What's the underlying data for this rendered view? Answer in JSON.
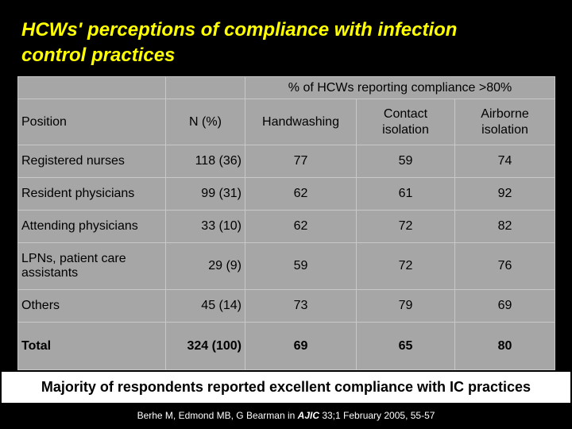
{
  "slide": {
    "title_line1": "HCWs' perceptions of compliance with infection",
    "title_line2": "control practices",
    "banner": "Majority of respondents reported excellent compliance with IC practices",
    "citation_prefix": "Berhe M, Edmond MB, G Bearman in ",
    "citation_journal": "AJIC",
    "citation_suffix": " 33;1 February 2005, 55-57"
  },
  "table": {
    "super_header": "% of HCWs reporting compliance >80%",
    "headers": {
      "position": "Position",
      "n": "N (%)",
      "handwashing": "Handwashing",
      "contact_line1": "Contact",
      "contact_line2": "isolation",
      "airborne_line1": "Airborne",
      "airborne_line2": "isolation"
    },
    "rows": [
      {
        "position": "Registered nurses",
        "n": "118 (36)",
        "handwashing": "77",
        "contact": "59",
        "airborne": "74"
      },
      {
        "position": "Resident physicians",
        "n": "99 (31)",
        "handwashing": "62",
        "contact": "61",
        "airborne": "92"
      },
      {
        "position": "Attending physicians",
        "n": "33 (10)",
        "handwashing": "62",
        "contact": "72",
        "airborne": "82"
      },
      {
        "position_line1": "LPNs, patient care",
        "position_line2": "assistants",
        "n": "29 (9)",
        "handwashing": "59",
        "contact": "72",
        "airborne": "76"
      },
      {
        "position": "Others",
        "n": "45 (14)",
        "handwashing": "73",
        "contact": "79",
        "airborne": "69"
      }
    ],
    "total": {
      "position": "Total",
      "n": "324 (100)",
      "handwashing": "69",
      "contact": "65",
      "airborne": "80"
    }
  }
}
